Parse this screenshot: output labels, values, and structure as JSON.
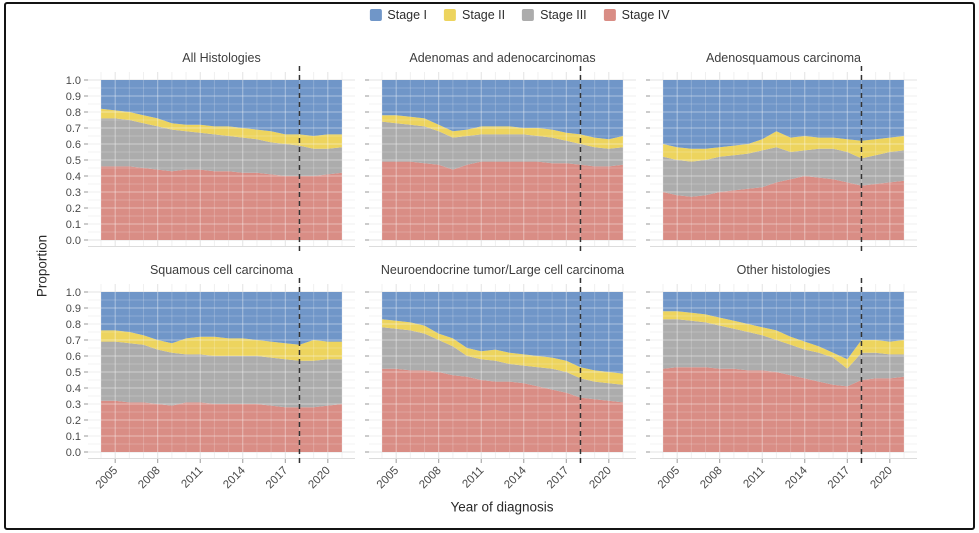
{
  "legend": {
    "items": [
      {
        "label": "Stage I",
        "color": "#7096C8"
      },
      {
        "label": "Stage II",
        "color": "#EDD45E"
      },
      {
        "label": "Stage III",
        "color": "#ACACAC"
      },
      {
        "label": "Stage IV",
        "color": "#D98D85"
      }
    ]
  },
  "axes": {
    "y_label": "Proportion",
    "x_label": "Year of diagnosis",
    "y_ticks": [
      "1.0",
      "0.9",
      "0.8",
      "0.7",
      "0.6",
      "0.5",
      "0.4",
      "0.3",
      "0.2",
      "0.1",
      "0.0"
    ],
    "x_ticks": [
      2005,
      2008,
      2011,
      2014,
      2017,
      2020
    ]
  },
  "colors": {
    "stage1_blue": "#7096C8",
    "stage2_yellow": "#EDD45E",
    "stage3_gray": "#ACACAC",
    "stage4_red": "#D98D85",
    "dashed_line": "#333333",
    "grid_major": "#e3e3e3",
    "grid_minor": "#f0f0f0",
    "tick": "#9a9a9a",
    "tick_text": "#4a4a4a"
  },
  "chart_data": {
    "type": "area",
    "stacked": true,
    "title": "",
    "xlabel": "Year of diagnosis",
    "ylabel": "Proportion",
    "legend_position": "top",
    "grid": true,
    "ylim": [
      0,
      1
    ],
    "x": [
      2004,
      2005,
      2006,
      2007,
      2008,
      2009,
      2010,
      2011,
      2012,
      2013,
      2014,
      2015,
      2016,
      2017,
      2018,
      2019,
      2020,
      2021
    ],
    "x_tick_labels": [
      2005,
      2008,
      2011,
      2014,
      2017,
      2020
    ],
    "dashed_reference_line_x": 2018,
    "stages_bottom_to_top": [
      "Stage IV",
      "Stage III",
      "Stage II",
      "Stage I"
    ],
    "note": "Values are cumulative stacked proportions (top boundary of each stage band, estimated from pixels). Stage I fills the remainder up to 1.0.",
    "panels": [
      {
        "title": "All Histologies",
        "stage4_top": [
          0.46,
          0.46,
          0.46,
          0.45,
          0.44,
          0.43,
          0.44,
          0.44,
          0.43,
          0.43,
          0.42,
          0.42,
          0.41,
          0.4,
          0.4,
          0.4,
          0.41,
          0.42
        ],
        "stage3_top": [
          0.76,
          0.76,
          0.75,
          0.73,
          0.71,
          0.69,
          0.68,
          0.67,
          0.66,
          0.65,
          0.64,
          0.63,
          0.61,
          0.6,
          0.59,
          0.57,
          0.57,
          0.58
        ],
        "stage2_top": [
          0.82,
          0.81,
          0.8,
          0.78,
          0.76,
          0.73,
          0.72,
          0.72,
          0.71,
          0.71,
          0.7,
          0.69,
          0.68,
          0.66,
          0.66,
          0.65,
          0.66,
          0.66
        ]
      },
      {
        "title": "Adenomas and adenocarcinomas",
        "stage4_top": [
          0.49,
          0.49,
          0.49,
          0.48,
          0.47,
          0.44,
          0.47,
          0.49,
          0.49,
          0.49,
          0.49,
          0.49,
          0.48,
          0.48,
          0.47,
          0.46,
          0.46,
          0.47
        ],
        "stage3_top": [
          0.74,
          0.73,
          0.72,
          0.71,
          0.68,
          0.64,
          0.65,
          0.66,
          0.66,
          0.66,
          0.66,
          0.65,
          0.64,
          0.62,
          0.6,
          0.58,
          0.57,
          0.58
        ],
        "stage2_top": [
          0.78,
          0.78,
          0.77,
          0.76,
          0.72,
          0.68,
          0.69,
          0.71,
          0.71,
          0.71,
          0.7,
          0.7,
          0.69,
          0.67,
          0.66,
          0.64,
          0.63,
          0.65
        ]
      },
      {
        "title": "Adenosquamous carcinoma",
        "stage4_top": [
          0.3,
          0.28,
          0.27,
          0.28,
          0.3,
          0.31,
          0.32,
          0.33,
          0.36,
          0.38,
          0.4,
          0.39,
          0.38,
          0.36,
          0.34,
          0.35,
          0.36,
          0.37
        ],
        "stage3_top": [
          0.52,
          0.5,
          0.49,
          0.5,
          0.52,
          0.53,
          0.54,
          0.56,
          0.58,
          0.55,
          0.56,
          0.57,
          0.57,
          0.55,
          0.51,
          0.53,
          0.55,
          0.56
        ],
        "stage2_top": [
          0.6,
          0.58,
          0.57,
          0.57,
          0.58,
          0.59,
          0.6,
          0.63,
          0.68,
          0.64,
          0.65,
          0.64,
          0.64,
          0.63,
          0.62,
          0.63,
          0.64,
          0.65
        ]
      },
      {
        "title": "Squamous cell carcinoma",
        "stage4_top": [
          0.32,
          0.32,
          0.31,
          0.31,
          0.3,
          0.29,
          0.31,
          0.31,
          0.3,
          0.3,
          0.3,
          0.3,
          0.29,
          0.28,
          0.28,
          0.28,
          0.29,
          0.3
        ],
        "stage3_top": [
          0.69,
          0.69,
          0.68,
          0.67,
          0.64,
          0.62,
          0.61,
          0.61,
          0.6,
          0.6,
          0.6,
          0.6,
          0.59,
          0.58,
          0.57,
          0.57,
          0.58,
          0.58
        ],
        "stage2_top": [
          0.76,
          0.76,
          0.75,
          0.73,
          0.7,
          0.68,
          0.71,
          0.72,
          0.72,
          0.71,
          0.71,
          0.7,
          0.69,
          0.68,
          0.67,
          0.7,
          0.69,
          0.69
        ]
      },
      {
        "title": "Neuroendocrine tumor/Large cell carcinoma",
        "stage4_top": [
          0.52,
          0.52,
          0.51,
          0.51,
          0.5,
          0.48,
          0.47,
          0.45,
          0.44,
          0.44,
          0.43,
          0.41,
          0.39,
          0.37,
          0.34,
          0.33,
          0.32,
          0.31
        ],
        "stage3_top": [
          0.78,
          0.77,
          0.76,
          0.74,
          0.7,
          0.66,
          0.6,
          0.58,
          0.57,
          0.55,
          0.54,
          0.53,
          0.52,
          0.5,
          0.46,
          0.44,
          0.43,
          0.42
        ],
        "stage2_top": [
          0.83,
          0.82,
          0.81,
          0.79,
          0.74,
          0.71,
          0.65,
          0.63,
          0.64,
          0.62,
          0.61,
          0.6,
          0.59,
          0.57,
          0.53,
          0.51,
          0.5,
          0.49
        ]
      },
      {
        "title": "Other histologies",
        "stage4_top": [
          0.52,
          0.53,
          0.53,
          0.53,
          0.52,
          0.52,
          0.51,
          0.51,
          0.5,
          0.48,
          0.46,
          0.44,
          0.42,
          0.41,
          0.45,
          0.46,
          0.46,
          0.47
        ],
        "stage3_top": [
          0.83,
          0.83,
          0.82,
          0.81,
          0.79,
          0.77,
          0.75,
          0.73,
          0.7,
          0.67,
          0.64,
          0.62,
          0.59,
          0.52,
          0.62,
          0.62,
          0.61,
          0.61
        ],
        "stage2_top": [
          0.88,
          0.88,
          0.87,
          0.86,
          0.84,
          0.82,
          0.8,
          0.78,
          0.76,
          0.72,
          0.69,
          0.66,
          0.62,
          0.58,
          0.7,
          0.7,
          0.69,
          0.7
        ]
      }
    ]
  }
}
